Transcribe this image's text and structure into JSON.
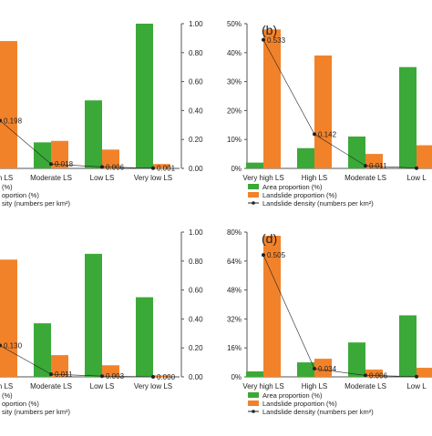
{
  "colors": {
    "area": "#3aa938",
    "landslide": "#f2822a",
    "density": "#222222",
    "axis": "#555555"
  },
  "chart_data": [
    {
      "type": "bar",
      "panel": "a",
      "panel_label": "",
      "categories": [
        "High LS",
        "Moderate LS",
        "Low LS",
        "Very low LS"
      ],
      "series": [
        {
          "name": "",
          "values": [
            0.02,
            0.18,
            0.47,
            1.0
          ]
        },
        {
          "name": "",
          "values": [
            0.88,
            0.19,
            0.13,
            0.03
          ]
        }
      ],
      "density": {
        "values": [
          0.198,
          0.018,
          0.006,
          0.001
        ],
        "labels": [
          "0.198",
          "0.018",
          "0.006",
          "0.001"
        ]
      },
      "ylim": [
        0,
        1.0
      ],
      "left_ticks": [],
      "right_ticks": [
        "0.00",
        "0.20",
        "0.40",
        "0.60",
        "0.80",
        "1.00"
      ],
      "legend_lines": [
        "(%)",
        "oportion (%)",
        "sity (numbers per km²)"
      ]
    },
    {
      "type": "bar",
      "panel": "b",
      "panel_label": "(b)",
      "categories": [
        "Very high LS",
        "High LS",
        "Moderate LS",
        "Low L"
      ],
      "series": [
        {
          "name": "Area proportion (%)",
          "values": [
            2,
            7,
            11,
            35
          ]
        },
        {
          "name": "Landslide proportion (%)",
          "values": [
            48,
            39,
            5,
            8
          ]
        }
      ],
      "density": {
        "values": [
          0.533,
          0.142,
          0.011,
          0.001
        ],
        "labels": [
          "0.533",
          "0.142",
          "0.011",
          ""
        ]
      },
      "ylim": [
        0,
        50
      ],
      "left_ticks": [
        "0%",
        "10%",
        "20%",
        "30%",
        "40%",
        "50%"
      ],
      "right_ticks": [],
      "legend_lines": [
        "Area proportion (%)",
        "Landslide proportion (%)",
        "Landslide density (numbers per km²)"
      ]
    },
    {
      "type": "bar",
      "panel": "c",
      "panel_label": "",
      "categories": [
        "High LS",
        "Moderate LS",
        "Low LS",
        "Very low LS"
      ],
      "series": [
        {
          "name": "",
          "values": [
            0.02,
            0.37,
            0.85,
            0.55
          ]
        },
        {
          "name": "",
          "values": [
            0.81,
            0.15,
            0.08,
            0.01
          ]
        }
      ],
      "density": {
        "values": [
          0.13,
          0.011,
          0.003,
          0.0
        ],
        "labels": [
          "0.130",
          "0.011",
          "0.003",
          "0.000"
        ]
      },
      "ylim": [
        0,
        1.0
      ],
      "left_ticks": [],
      "right_ticks": [
        "0.00",
        "0.20",
        "0.40",
        "0.60",
        "0.80",
        "1.00"
      ],
      "legend_lines": [
        "(%)",
        "oportion (%)",
        "sity (numbers per km²)"
      ]
    },
    {
      "type": "bar",
      "panel": "d",
      "panel_label": "(d)",
      "categories": [
        "Very high LS",
        "High LS",
        "Moderate LS",
        "Low L"
      ],
      "series": [
        {
          "name": "Area proportion (%)",
          "values": [
            3,
            8,
            19,
            34
          ]
        },
        {
          "name": "Landslide proportion (%)",
          "values": [
            78,
            10,
            4,
            5
          ]
        }
      ],
      "density": {
        "values": [
          0.505,
          0.034,
          0.006,
          0.001
        ],
        "labels": [
          "0.505",
          "0.034",
          "0.006",
          ""
        ]
      },
      "ylim": [
        0,
        80
      ],
      "left_ticks": [
        "0%",
        "16%",
        "32%",
        "48%",
        "64%",
        "80%"
      ],
      "right_ticks": [],
      "legend_lines": [
        "Area proportion (%)",
        "Landslide proportion (%)",
        "Landslide density (numbers per km²)"
      ]
    }
  ]
}
